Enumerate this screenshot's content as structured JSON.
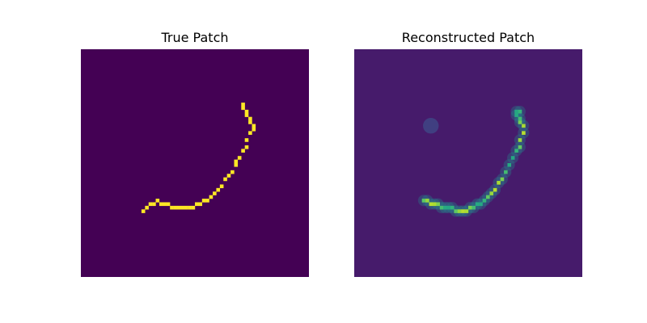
{
  "chart_data": [
    {
      "type": "heatmap",
      "title": "True Patch",
      "grid": false,
      "axes_visible": false,
      "colormap": "viridis",
      "value_range": [
        0,
        1
      ],
      "grid_size": [
        64,
        64
      ],
      "description_values": "binary stroke: background 0, stroke pixels 1",
      "stroke_points": [
        [
          17,
          45
        ],
        [
          18,
          44
        ],
        [
          19,
          43
        ],
        [
          20,
          43
        ],
        [
          21,
          42
        ],
        [
          22,
          43
        ],
        [
          23,
          43
        ],
        [
          24,
          43
        ],
        [
          25,
          44
        ],
        [
          26,
          44
        ],
        [
          27,
          44
        ],
        [
          28,
          44
        ],
        [
          29,
          44
        ],
        [
          30,
          44
        ],
        [
          31,
          44
        ],
        [
          32,
          43
        ],
        [
          33,
          43
        ],
        [
          34,
          42
        ],
        [
          35,
          42
        ],
        [
          36,
          41
        ],
        [
          37,
          40
        ],
        [
          38,
          39
        ],
        [
          39,
          38
        ],
        [
          40,
          36
        ],
        [
          41,
          35
        ],
        [
          42,
          34
        ],
        [
          43,
          32
        ],
        [
          43,
          31
        ],
        [
          44,
          30
        ],
        [
          45,
          28
        ],
        [
          46,
          27
        ],
        [
          46,
          25
        ],
        [
          47,
          23
        ],
        [
          48,
          22
        ],
        [
          48,
          21
        ],
        [
          47,
          20
        ],
        [
          47,
          19
        ],
        [
          46,
          18
        ],
        [
          46,
          17
        ],
        [
          45,
          16
        ],
        [
          45,
          15
        ]
      ],
      "background_value": 0,
      "stroke_value": 1
    },
    {
      "type": "heatmap",
      "title": "Reconstructed Patch",
      "grid": false,
      "axes_visible": false,
      "colormap": "viridis",
      "value_range": [
        0,
        1
      ],
      "grid_size": [
        64,
        64
      ],
      "stroke_points": [
        [
          19,
          42
        ],
        [
          20,
          42
        ],
        [
          21,
          43
        ],
        [
          22,
          43
        ],
        [
          23,
          43
        ],
        [
          24,
          44
        ],
        [
          25,
          44
        ],
        [
          26,
          44
        ],
        [
          27,
          44
        ],
        [
          28,
          45
        ],
        [
          29,
          45
        ],
        [
          30,
          45
        ],
        [
          31,
          45
        ],
        [
          32,
          44
        ],
        [
          33,
          44
        ],
        [
          34,
          43
        ],
        [
          35,
          43
        ],
        [
          36,
          42
        ],
        [
          37,
          41
        ],
        [
          38,
          40
        ],
        [
          39,
          39
        ],
        [
          40,
          37
        ],
        [
          41,
          36
        ],
        [
          42,
          34
        ],
        [
          43,
          32
        ],
        [
          44,
          30
        ],
        [
          45,
          28
        ],
        [
          46,
          27
        ],
        [
          46,
          25
        ],
        [
          47,
          23
        ],
        [
          47,
          21
        ],
        [
          46,
          20
        ],
        [
          46,
          19
        ],
        [
          45,
          18
        ],
        [
          45,
          17
        ],
        [
          46,
          17
        ]
      ],
      "stroke_value": 0.75,
      "background_value": 0.08,
      "blob": {
        "center": [
          21,
          21
        ],
        "value": 0.22
      }
    }
  ]
}
